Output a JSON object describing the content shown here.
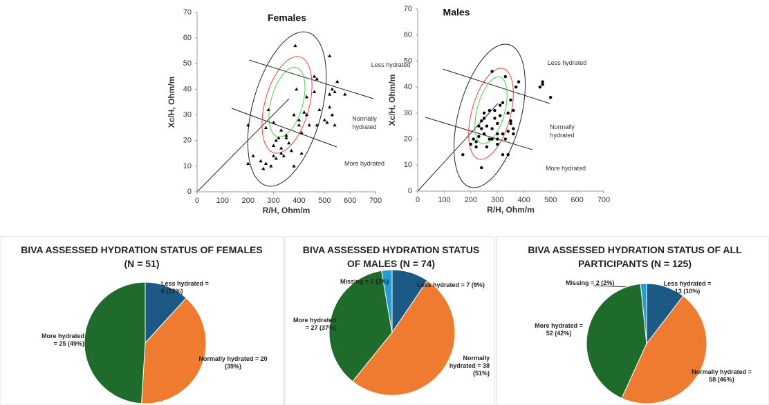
{
  "chart_data": [
    {
      "type": "scatter",
      "title": "Females",
      "xlabel": "R/H, Ohm/m",
      "ylabel": "Xc/H, Ohm/m",
      "xlim": [
        0,
        700
      ],
      "ylim": [
        0,
        70
      ],
      "xticks": [
        0,
        100,
        200,
        300,
        400,
        500,
        600,
        700
      ],
      "yticks": [
        0,
        10,
        20,
        30,
        40,
        50,
        60,
        70
      ],
      "marker": "triangle",
      "color": "#000000",
      "annotations": [
        "Less hydrated",
        "Normally hydrated",
        "More hydrated"
      ],
      "x": [
        385,
        520,
        550,
        530,
        460,
        520,
        540,
        580,
        430,
        480,
        520,
        530,
        500,
        470,
        510,
        540,
        400,
        430,
        380,
        420,
        400,
        350,
        320,
        310,
        300,
        330,
        340,
        310,
        330,
        370,
        280,
        200,
        270,
        220,
        200,
        250,
        260,
        270,
        290,
        300,
        380,
        410,
        350,
        360,
        440,
        300,
        330,
        470,
        460,
        410,
        390
      ],
      "values": [
        57,
        53,
        43,
        40,
        45,
        38,
        39,
        38,
        37,
        32,
        33,
        30,
        28,
        26,
        27,
        26,
        28,
        30,
        30,
        31,
        26,
        22,
        21,
        20,
        18,
        17,
        14,
        13,
        15,
        16,
        32,
        26,
        25,
        14,
        11,
        12,
        9,
        11,
        10,
        14,
        10,
        15,
        21,
        19,
        26,
        27,
        24,
        44,
        39,
        23,
        40
      ]
    },
    {
      "type": "scatter",
      "title": "Males",
      "xlabel": "R/H, Ohm/m",
      "ylabel": "Xc/H, Ohm/m",
      "xlim": [
        0,
        700
      ],
      "ylim": [
        0,
        70
      ],
      "xticks": [
        0,
        100,
        200,
        300,
        400,
        500,
        600,
        700
      ],
      "yticks": [
        0,
        10,
        20,
        30,
        40,
        50,
        60,
        70
      ],
      "marker": "circle",
      "color": "#000000",
      "annotations": [
        "Less hydrated",
        "Normally hydrated",
        "More hydrated"
      ],
      "x": [
        280,
        330,
        380,
        370,
        460,
        470,
        470,
        500,
        350,
        320,
        360,
        290,
        270,
        250,
        240,
        300,
        280,
        320,
        340,
        360,
        360,
        230,
        220,
        200,
        220,
        260,
        280,
        300,
        300,
        250,
        170,
        240,
        320,
        340,
        330,
        290,
        260,
        240,
        300,
        310,
        350,
        350,
        270,
        230,
        310,
        340,
        210,
        250
      ],
      "values": [
        46,
        44,
        42,
        40,
        40,
        41,
        42,
        36,
        35,
        34,
        31,
        31,
        31,
        28,
        27,
        26,
        24,
        22,
        23,
        24,
        22,
        21,
        19,
        18,
        17,
        17,
        20,
        20,
        22,
        22,
        14,
        9,
        14,
        14,
        20,
        28,
        25,
        24,
        18,
        29,
        27,
        26,
        20,
        25,
        33,
        30,
        20,
        30
      ]
    },
    {
      "type": "pie",
      "title": "BIVA ASSESSED HYDRATION STATUS OF FEMALES (N = 51)",
      "categories": [
        "Less hydrated",
        "Normally hydrated",
        "More hydrated"
      ],
      "values": [
        6,
        20,
        25
      ],
      "value_labels": [
        "= 6 (12%)",
        "= 20 (39%)",
        "= 25 (49%)"
      ],
      "colors": [
        "#1c5a85",
        "#ee7b30",
        "#1f6b2b"
      ]
    },
    {
      "type": "pie",
      "title": "BIVA ASSESSED HYDRATION STATUS OF MALES (N = 74)",
      "categories": [
        "Less hydrated",
        "Normally hydrated",
        "More hydrated",
        "Missing"
      ],
      "values": [
        7,
        38,
        27,
        2
      ],
      "value_labels": [
        "= 7 (9%)",
        "= 38 (51%)",
        "= 27 (37%)",
        "= 2 (3%)"
      ],
      "colors": [
        "#1c5a85",
        "#ee7b30",
        "#1f6b2b",
        "#1f9fd6"
      ]
    },
    {
      "type": "pie",
      "title": "BIVA ASSESSED HYDRATION STATUS OF ALL PARTICIPANTS (N = 125)",
      "categories": [
        "Less hydrated",
        "Normally hydrated",
        "More hydrated",
        "Missing"
      ],
      "values": [
        13,
        58,
        52,
        2
      ],
      "value_labels": [
        "= 13 (10%)",
        "= 58 (46%)",
        "= 52 (42%)",
        "= 2 (2%)"
      ],
      "colors": [
        "#1c5a85",
        "#ee7b30",
        "#1f6b2b",
        "#1f9fd6"
      ]
    }
  ]
}
